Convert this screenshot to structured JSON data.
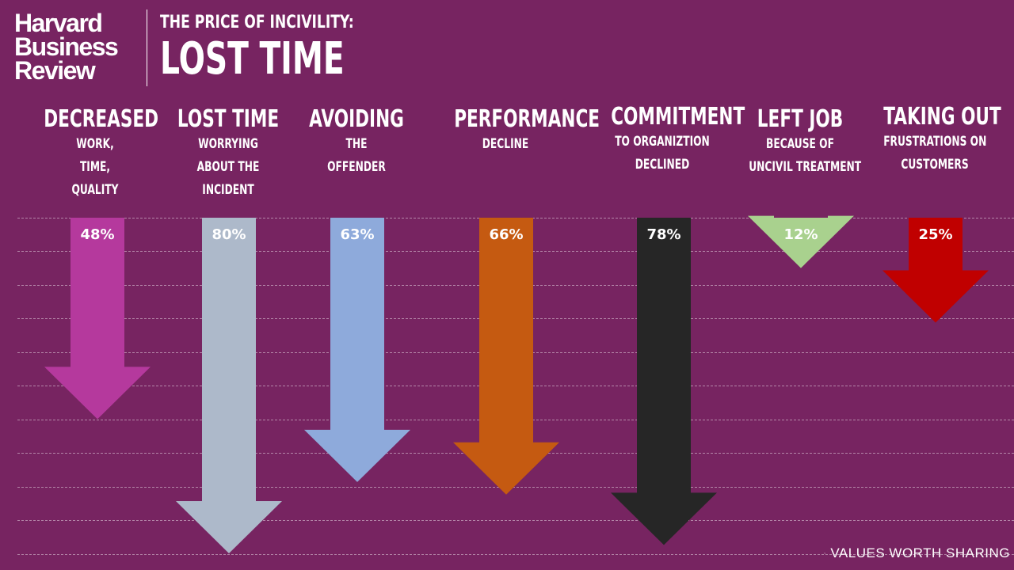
{
  "logo": {
    "line1": "Harvard",
    "line2": "Business",
    "line3": "Review"
  },
  "title": {
    "line1": "THE PRICE OF INCIVILITY:",
    "line2": "LOST TIME"
  },
  "categories": [
    {
      "heading": "DECREASED",
      "sub": [
        "WORK,",
        "TIME,",
        "QUALITY"
      ]
    },
    {
      "heading": "LOST TIME",
      "sub": [
        "WORRYING",
        "ABOUT THE",
        "INCIDENT"
      ]
    },
    {
      "heading": "AVOIDING",
      "sub": [
        "THE",
        "OFFENDER"
      ]
    },
    {
      "heading": "PERFORMANCE",
      "sub": [
        "DECLINE"
      ]
    },
    {
      "heading": "COMMITMENT",
      "sub": [
        "TO ORGANIZTION",
        "DECLINED"
      ]
    },
    {
      "heading": "LEFT JOB",
      "sub": [
        "BECAUSE OF",
        "UNCIVIL TREATMENT"
      ]
    },
    {
      "heading": "TAKING OUT",
      "sub": [
        "FRUSTRATIONS ON",
        "CUSTOMERS"
      ]
    }
  ],
  "chart_data": {
    "type": "bar",
    "orientation": "downward-arrows",
    "categories": [
      "DECREASED",
      "LOST TIME",
      "AVOIDING",
      "PERFORMANCE",
      "COMMITMENT",
      "LEFT JOB",
      "TAKING OUT"
    ],
    "values": [
      48,
      80,
      63,
      66,
      78,
      12,
      25
    ],
    "data_labels": [
      "48%",
      "80%",
      "63%",
      "66%",
      "78%",
      "12%",
      "25%"
    ],
    "colors": [
      "#b5399d",
      "#adb9ca",
      "#8eaadb",
      "#c55a11",
      "#262626",
      "#a9d18e",
      "#c00000"
    ],
    "title": "THE PRICE OF INCIVILITY: LOST TIME",
    "ylim": [
      0,
      100
    ],
    "grid": true
  },
  "brand": {
    "text": "VALUES WORTH SHARING"
  },
  "colors": {
    "background": "#772461",
    "text": "#ffffff"
  }
}
